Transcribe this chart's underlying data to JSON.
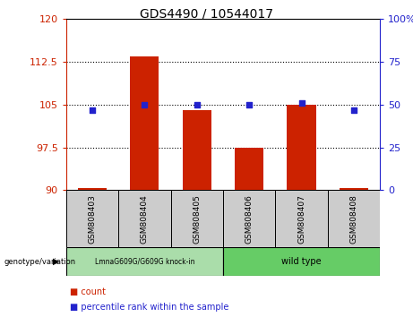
{
  "title": "GDS4490 / 10544017",
  "samples": [
    "GSM808403",
    "GSM808404",
    "GSM808405",
    "GSM808406",
    "GSM808407",
    "GSM808408"
  ],
  "counts": [
    90.3,
    113.5,
    104.0,
    97.5,
    105.0,
    90.3
  ],
  "percentiles": [
    47,
    50,
    50,
    50,
    51,
    47
  ],
  "ylim_left": [
    90,
    120
  ],
  "ylim_right": [
    0,
    100
  ],
  "yticks_left": [
    90,
    97.5,
    105,
    112.5,
    120
  ],
  "yticks_right": [
    0,
    25,
    50,
    75,
    100
  ],
  "ytick_labels_right": [
    "0",
    "25",
    "50",
    "75",
    "100%"
  ],
  "bar_color": "#cc2200",
  "dot_color": "#2222cc",
  "bar_width": 0.55,
  "group1_label": "LmnaG609G/G609G knock-in",
  "group2_label": "wild type",
  "group1_indices": [
    0,
    1,
    2
  ],
  "group2_indices": [
    3,
    4,
    5
  ],
  "group1_color": "#aaddaa",
  "group2_color": "#66cc66",
  "sample_box_color": "#cccccc",
  "left_axis_color": "#cc2200",
  "right_axis_color": "#2222cc",
  "grid_color": "black",
  "fig_width": 4.61,
  "fig_height": 3.54,
  "dpi": 100
}
